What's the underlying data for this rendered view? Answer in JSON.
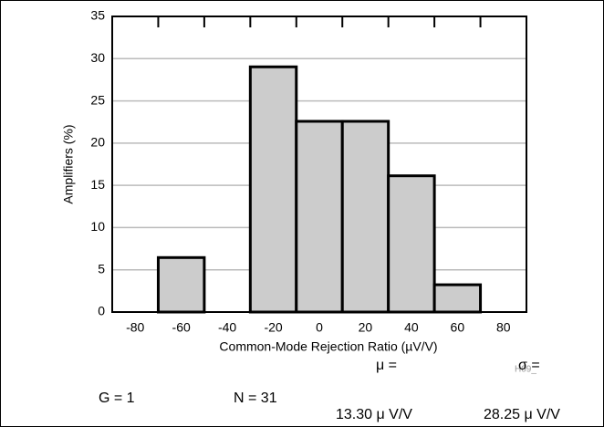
{
  "chart_data": {
    "type": "histogram",
    "xlabel": "Common-Mode Rejection Ratio (µV/V)",
    "ylabel": "Amplifiers (%)",
    "bins": [
      -70,
      -50,
      -30,
      -10,
      10,
      30,
      50,
      70
    ],
    "values": [
      6.45,
      0,
      29.03,
      22.58,
      22.58,
      16.13,
      3.23
    ],
    "color": "#cccccc",
    "xlim": [
      -90,
      90
    ],
    "xticks": [
      -80,
      -60,
      -40,
      -20,
      0,
      20,
      40,
      60,
      80
    ],
    "ylim": [
      0,
      35
    ],
    "yticks": [
      0,
      5,
      10,
      15,
      20,
      25,
      30,
      35
    ],
    "grid": true,
    "annotations": [
      "H09_",
      "G = 1",
      "N = 31",
      "μ  =",
      "13.30 μ V/V",
      "σ  =",
      "28.25 μ V/V"
    ]
  }
}
